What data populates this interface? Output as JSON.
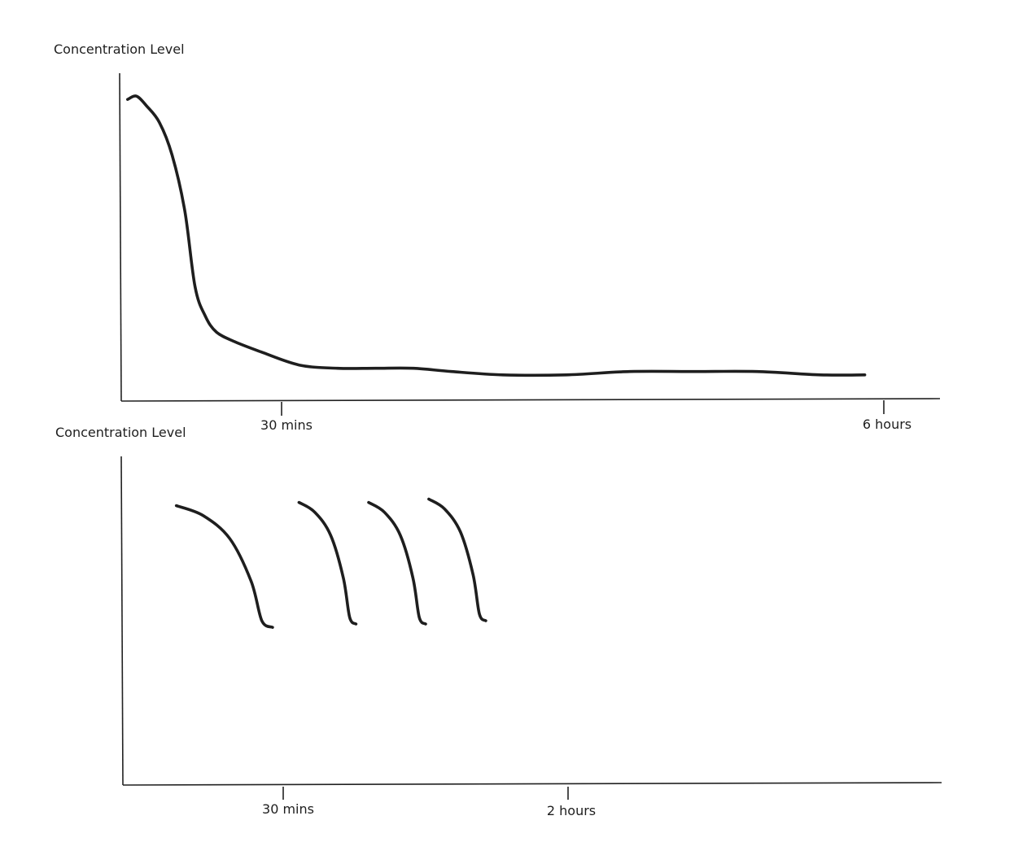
{
  "chart_data": [
    {
      "type": "line",
      "ylabel": "Concentration Level",
      "x_ticks": [
        "30 mins",
        "6 hours"
      ],
      "grid": false,
      "legend": "none",
      "series": [
        {
          "x_hours": [
            0.05,
            0.12,
            0.2,
            0.3,
            0.4,
            0.5,
            0.58,
            0.66,
            0.75,
            0.9,
            1.1,
            1.4,
            1.7,
            2.0,
            2.3,
            2.6,
            3.0,
            3.5,
            4.0,
            4.5,
            5.0,
            5.5,
            5.85
          ],
          "y_level": [
            0.92,
            0.93,
            0.9,
            0.85,
            0.75,
            0.58,
            0.35,
            0.26,
            0.21,
            0.18,
            0.15,
            0.11,
            0.1,
            0.1,
            0.1,
            0.09,
            0.08,
            0.08,
            0.09,
            0.09,
            0.09,
            0.08,
            0.08
          ]
        }
      ]
    },
    {
      "type": "line",
      "ylabel": "Concentration Level",
      "x_ticks": [
        "30 mins",
        "2 hours"
      ],
      "grid": false,
      "legend": "none",
      "series": [
        {
          "x_minutes": [
            10,
            15,
            20,
            24,
            26,
            28
          ],
          "y_level": [
            0.85,
            0.82,
            0.75,
            0.62,
            0.5,
            0.48
          ]
        },
        {
          "x_minutes": [
            35,
            40,
            45,
            49,
            51,
            53
          ],
          "y_level": [
            0.86,
            0.83,
            0.76,
            0.63,
            0.51,
            0.49
          ]
        },
        {
          "x_minutes": [
            57,
            62,
            67,
            71,
            73,
            75
          ],
          "y_level": [
            0.86,
            0.83,
            0.76,
            0.63,
            0.51,
            0.49
          ]
        },
        {
          "x_minutes": [
            76,
            81,
            86,
            90,
            92,
            94
          ],
          "y_level": [
            0.87,
            0.84,
            0.77,
            0.64,
            0.52,
            0.5
          ]
        }
      ]
    }
  ]
}
